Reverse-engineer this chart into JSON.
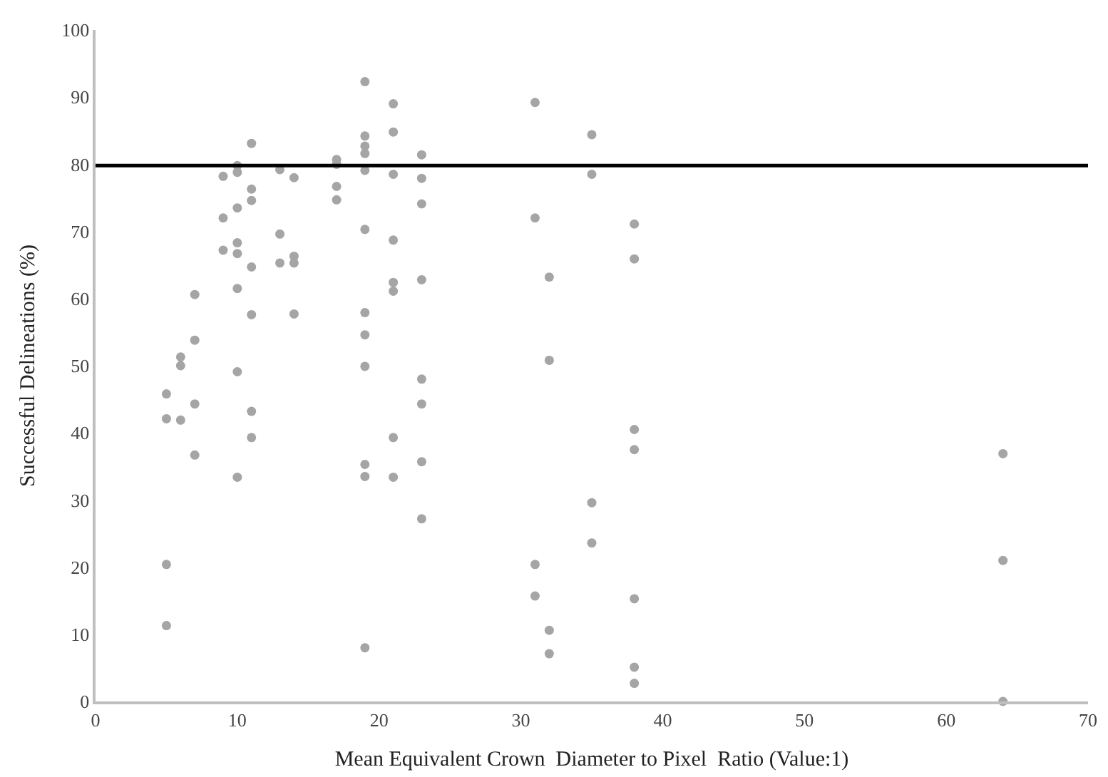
{
  "chart_data": {
    "type": "scatter",
    "xlabel": "Mean Equivalent Crown  Diameter to Pixel  Ratio (Value:1)",
    "ylabel": "Successful Delineations (%)",
    "series": [
      {
        "color": "#a5a5a5",
        "x": [
          5,
          5,
          5,
          5,
          6,
          6,
          6,
          7,
          7,
          7,
          7,
          9,
          9,
          9,
          10,
          10,
          10,
          10,
          10,
          10,
          10,
          10,
          11,
          11,
          11,
          11,
          11,
          11,
          11,
          13,
          13,
          13,
          14,
          14,
          14,
          14,
          17,
          17,
          17,
          17,
          19,
          19,
          19,
          19,
          19,
          19,
          19,
          19,
          19,
          19,
          19,
          19,
          21,
          21,
          21,
          21,
          21,
          21,
          21,
          21,
          23,
          23,
          23,
          23,
          23,
          23,
          23,
          23,
          31,
          31,
          31,
          31,
          32,
          32,
          32,
          32,
          35,
          35,
          35,
          35,
          38,
          38,
          38,
          38,
          38,
          38,
          38,
          64,
          64,
          64
        ],
        "values": [
          45.8,
          42.1,
          20.4,
          11.3,
          51.3,
          50.0,
          41.9,
          60.6,
          53.8,
          44.3,
          36.7,
          78.2,
          72.0,
          67.2,
          79.8,
          78.8,
          73.5,
          68.3,
          66.7,
          61.5,
          49.1,
          33.4,
          83.1,
          76.3,
          74.6,
          64.7,
          57.6,
          43.2,
          39.3,
          79.2,
          69.6,
          65.3,
          78.0,
          66.3,
          65.3,
          57.7,
          80.7,
          80.0,
          76.7,
          74.7,
          92.3,
          84.2,
          82.7,
          81.6,
          79.1,
          70.3,
          57.9,
          54.6,
          49.9,
          35.3,
          33.5,
          8.0,
          89.0,
          84.8,
          78.5,
          68.7,
          62.4,
          61.1,
          39.3,
          33.4,
          81.4,
          77.9,
          74.1,
          62.8,
          48.0,
          44.3,
          35.7,
          27.2,
          89.2,
          72.0,
          20.4,
          15.7,
          63.2,
          50.8,
          10.6,
          7.1,
          84.4,
          78.5,
          29.6,
          23.6,
          71.1,
          65.9,
          40.5,
          37.5,
          15.3,
          5.1,
          2.7,
          36.9,
          21.0,
          0
        ]
      }
    ],
    "xlim": [
      0,
      70
    ],
    "xticks": [
      0,
      10,
      20,
      30,
      40,
      50,
      60,
      70
    ],
    "ylim": [
      0,
      100
    ],
    "yticks": [
      0,
      10,
      20,
      30,
      40,
      50,
      60,
      70,
      80,
      90,
      100
    ],
    "ref_lines": [
      {
        "axis": "y",
        "value": 79.8,
        "color": "#000000"
      }
    ],
    "marker": "circle"
  }
}
